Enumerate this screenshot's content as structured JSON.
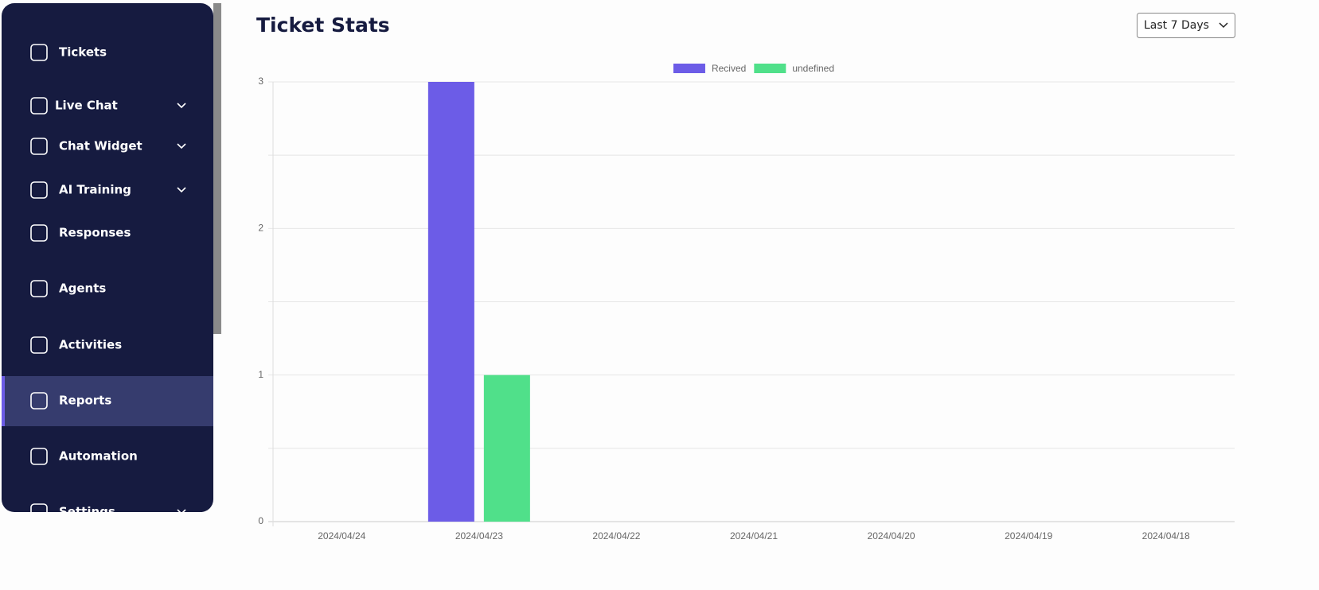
{
  "sidebar": {
    "items": [
      "Tickets",
      "Live Chat",
      "Chat Widget",
      "AI Training",
      "Responses",
      "Agents",
      "Activities",
      "Reports",
      "Automation",
      "Settings"
    ]
  },
  "header": {
    "title": "Ticket Stats",
    "range": "Last 7 Days"
  },
  "chart_data": {
    "type": "bar",
    "categories": [
      "2024/04/24",
      "2024/04/23",
      "2024/04/22",
      "2024/04/21",
      "2024/04/20",
      "2024/04/19",
      "2024/04/18"
    ],
    "series": [
      {
        "name": "Recived",
        "color": "#6c5ce7",
        "values": [
          0,
          3,
          0,
          0,
          0,
          0,
          0
        ]
      },
      {
        "name": "undefined",
        "color": "#50e08a",
        "values": [
          0,
          1,
          0,
          0,
          0,
          0,
          0
        ]
      }
    ],
    "ylim": [
      0,
      3
    ],
    "yticks": [
      0,
      1,
      2,
      3
    ],
    "grid": true,
    "legend": "top"
  }
}
